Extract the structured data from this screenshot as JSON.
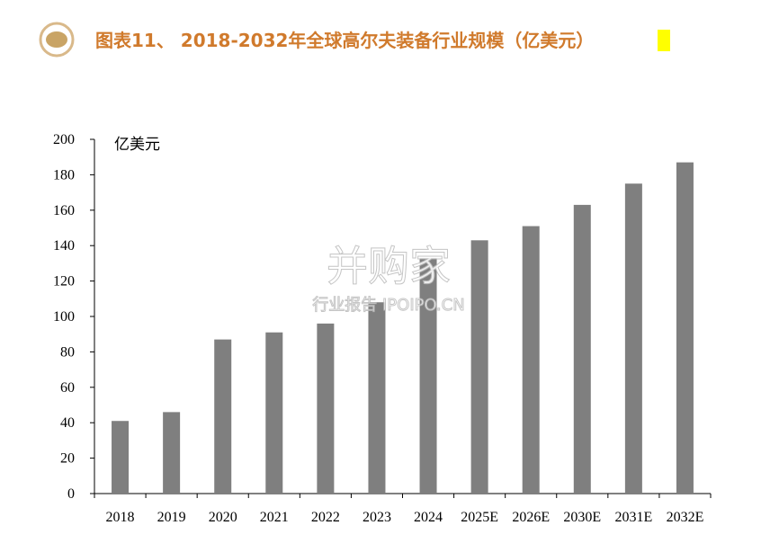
{
  "chart_data": {
    "type": "bar",
    "title": "图表11、 2018-2032年全球高尔夫装备行业规模（亿美元）",
    "y_unit": "亿美元",
    "watermark": [
      "并购家",
      "行业报告 IPOIPO.CN"
    ],
    "categories": [
      "2018",
      "2019",
      "2020",
      "2021",
      "2022",
      "2023",
      "2024",
      "2025E",
      "2026E",
      "2030E",
      "2031E",
      "2032E"
    ],
    "values": [
      41,
      46,
      87,
      91,
      96,
      108,
      133,
      143,
      151,
      163,
      175,
      187
    ],
    "color": "#7f7f7f",
    "ylim": [
      0,
      200
    ],
    "yticks": [
      0,
      20,
      40,
      60,
      80,
      100,
      120,
      140,
      160,
      180,
      200
    ]
  }
}
